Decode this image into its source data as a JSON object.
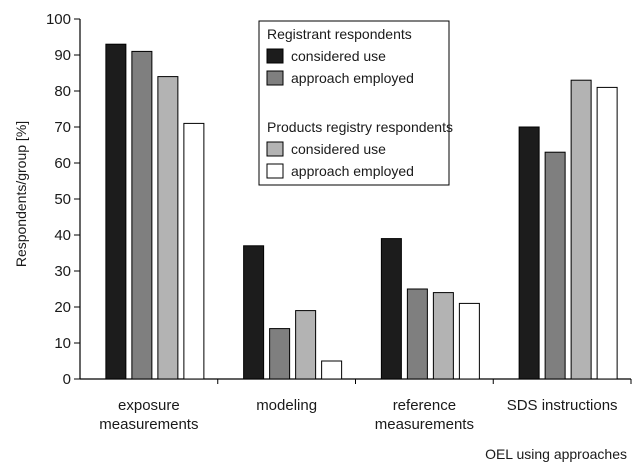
{
  "chart_data": {
    "type": "bar",
    "title": "",
    "xlabel": "OEL using approaches",
    "ylabel": "Respondents/group [%]",
    "ylim": [
      0,
      100
    ],
    "yticks": [
      0,
      10,
      20,
      30,
      40,
      50,
      60,
      70,
      80,
      90,
      100
    ],
    "grid": false,
    "legend_position": "top-center",
    "categories": [
      [
        "exposure",
        "measurements"
      ],
      [
        "modeling"
      ],
      [
        "reference",
        "measurements"
      ],
      [
        "SDS instructions"
      ]
    ],
    "legend_groups": [
      "Registrant respondents",
      "Products registry respondents"
    ],
    "series": [
      {
        "name": "considered use",
        "group": 0,
        "color": "#1c1c1c",
        "values": [
          93,
          37,
          39,
          70
        ]
      },
      {
        "name": "approach employed",
        "group": 0,
        "color": "#7f7f7f",
        "values": [
          91,
          14,
          25,
          63
        ]
      },
      {
        "name": "considered use",
        "group": 1,
        "color": "#b3b3b3",
        "values": [
          84,
          19,
          24,
          83
        ]
      },
      {
        "name": "approach employed",
        "group": 1,
        "color": "#ffffff",
        "values": [
          71,
          5,
          21,
          81
        ]
      }
    ]
  }
}
